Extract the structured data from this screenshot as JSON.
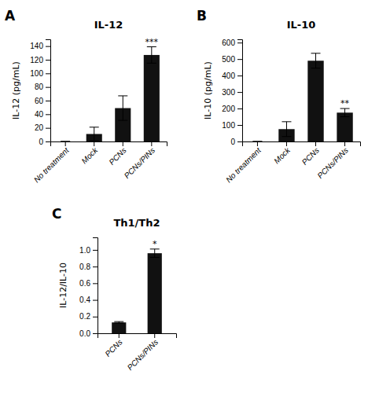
{
  "chart_data": [
    {
      "type": "bar",
      "title": "IL-12",
      "panel_label": "A",
      "categories": [
        "No treatment",
        "Mock",
        "PCNs",
        "PCNs/PINs"
      ],
      "values": [
        0,
        11,
        49,
        127
      ],
      "errors": [
        0,
        10,
        18,
        12
      ],
      "ylabel": "IL-12 (pg/mL)",
      "ylim": [
        0,
        150
      ],
      "yticks": [
        0,
        20,
        40,
        60,
        80,
        100,
        120,
        140
      ],
      "annotations": [
        {
          "text": "***",
          "category": "PCNs/PINs"
        }
      ],
      "color": "#111111",
      "grid": false
    },
    {
      "type": "bar",
      "title": "IL-10",
      "panel_label": "B",
      "categories": [
        "No treatment",
        "Mock",
        "PCNs",
        "PCNs/PINs"
      ],
      "values": [
        0,
        75,
        490,
        175
      ],
      "errors": [
        0,
        45,
        45,
        25
      ],
      "ylabel": "IL-10 (pg/mL)",
      "ylim": [
        0,
        620
      ],
      "yticks": [
        0,
        100,
        200,
        300,
        400,
        500,
        600
      ],
      "annotations": [
        {
          "text": "**",
          "category": "PCNs/PINs"
        }
      ],
      "color": "#111111",
      "grid": false
    },
    {
      "type": "bar",
      "title": "Th1/Th2",
      "panel_label": "C",
      "categories": [
        "PCNs",
        "PCNs/PINs"
      ],
      "values": [
        0.13,
        0.96
      ],
      "errors": [
        0.01,
        0.05
      ],
      "ylabel": "IL-12/IL-10",
      "ylim": [
        0,
        1.15
      ],
      "yticks": [
        {
          "value": 0,
          "label": "0.0"
        },
        0.2,
        0.4,
        0.6,
        0.8,
        {
          "value": 1,
          "label": "1.0"
        }
      ],
      "annotations": [
        {
          "text": "*",
          "category": "PCNs/PINs"
        }
      ],
      "color": "#111111",
      "grid": false
    }
  ]
}
